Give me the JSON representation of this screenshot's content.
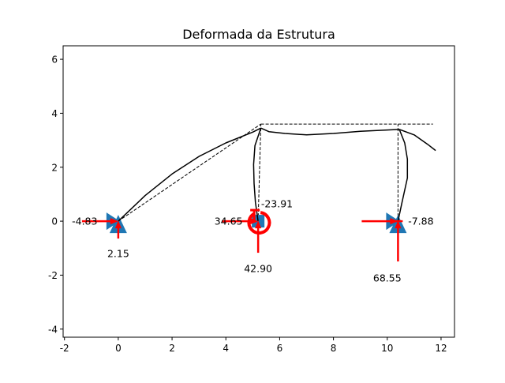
{
  "figure": {
    "title": "Deformada da Estrutura"
  },
  "axes": {
    "xlim": [
      -2.05,
      12.5
    ],
    "ylim": [
      -4.3,
      6.5
    ],
    "x_ticks": [
      -2,
      0,
      2,
      4,
      6,
      8,
      10,
      12
    ],
    "y_ticks": [
      -4,
      -2,
      0,
      2,
      4,
      6
    ]
  },
  "colors": {
    "support": "#1f77b4",
    "reaction": "#ff0000",
    "line": "#000000"
  },
  "structure": {
    "undeformed": [
      {
        "name": "member-1",
        "points": [
          [
            0,
            0
          ],
          [
            5.3,
            3.6
          ]
        ]
      },
      {
        "name": "member-2",
        "points": [
          [
            5.2,
            0
          ],
          [
            5.3,
            3.6
          ]
        ]
      },
      {
        "name": "member-3",
        "points": [
          [
            5.3,
            3.6
          ],
          [
            11.7,
            3.6
          ]
        ]
      },
      {
        "name": "member-4",
        "points": [
          [
            10.4,
            0
          ],
          [
            10.4,
            3.6
          ]
        ]
      }
    ],
    "deformed": [
      {
        "name": "member-1",
        "points": [
          [
            0,
            0
          ],
          [
            1.0,
            0.95
          ],
          [
            2.0,
            1.75
          ],
          [
            3.0,
            2.4
          ],
          [
            4.0,
            2.9
          ],
          [
            5.0,
            3.3
          ],
          [
            5.3,
            3.45
          ]
        ]
      },
      {
        "name": "member-2",
        "points": [
          [
            5.2,
            0
          ],
          [
            5.1,
            0.7
          ],
          [
            5.05,
            1.4
          ],
          [
            5.03,
            2.1
          ],
          [
            5.08,
            2.8
          ],
          [
            5.3,
            3.45
          ]
        ]
      },
      {
        "name": "member-3",
        "points": [
          [
            5.3,
            3.45
          ],
          [
            5.6,
            3.32
          ],
          [
            6.2,
            3.25
          ],
          [
            7.0,
            3.2
          ],
          [
            8.0,
            3.25
          ],
          [
            9.0,
            3.33
          ],
          [
            10.0,
            3.38
          ],
          [
            10.45,
            3.4
          ],
          [
            11.0,
            3.2
          ],
          [
            11.5,
            2.85
          ],
          [
            11.8,
            2.62
          ]
        ]
      },
      {
        "name": "member-4",
        "points": [
          [
            10.4,
            0
          ],
          [
            10.55,
            0.7
          ],
          [
            10.75,
            1.6
          ],
          [
            10.75,
            2.3
          ],
          [
            10.65,
            2.9
          ],
          [
            10.45,
            3.4
          ]
        ]
      }
    ]
  },
  "supports": [
    {
      "name": "support-left",
      "type": "pin-roller",
      "x": 0,
      "y": 0
    },
    {
      "name": "support-middle",
      "type": "fixed",
      "x": 5.2,
      "y": 0
    },
    {
      "name": "support-right",
      "type": "pin-roller",
      "x": 10.4,
      "y": 0
    }
  ],
  "reactions": [
    {
      "name": "reaction-left-horizontal",
      "kind": "horizontal",
      "node_x": 0,
      "node_y": 0,
      "label": "-4.83",
      "label_x": -1.25,
      "label_y": 0.0
    },
    {
      "name": "reaction-left-vertical",
      "kind": "vertical",
      "node_x": 0,
      "node_y": 0,
      "label": "2.15",
      "label_x": 0.0,
      "label_y": -1.2
    },
    {
      "name": "reaction-middle-horizontal",
      "kind": "horizontal",
      "node_x": 5.2,
      "node_y": 0,
      "label": "34.65",
      "label_x": 4.1,
      "label_y": 0.0
    },
    {
      "name": "reaction-middle-vertical",
      "kind": "vertical",
      "node_x": 5.2,
      "node_y": 0,
      "label": "42.90",
      "label_x": 5.2,
      "label_y": -1.75
    },
    {
      "name": "reaction-middle-moment",
      "kind": "moment",
      "node_x": 5.2,
      "node_y": 0,
      "label": "-23.91",
      "label_x": 5.9,
      "label_y": 0.65
    },
    {
      "name": "reaction-right-horizontal",
      "kind": "horizontal",
      "node_x": 10.4,
      "node_y": 0,
      "label": "-7.88",
      "label_x": 11.25,
      "label_y": 0.0
    },
    {
      "name": "reaction-right-vertical",
      "kind": "vertical",
      "node_x": 10.4,
      "node_y": 0,
      "label": "68.55",
      "label_x": 10.0,
      "label_y": -2.1
    }
  ]
}
